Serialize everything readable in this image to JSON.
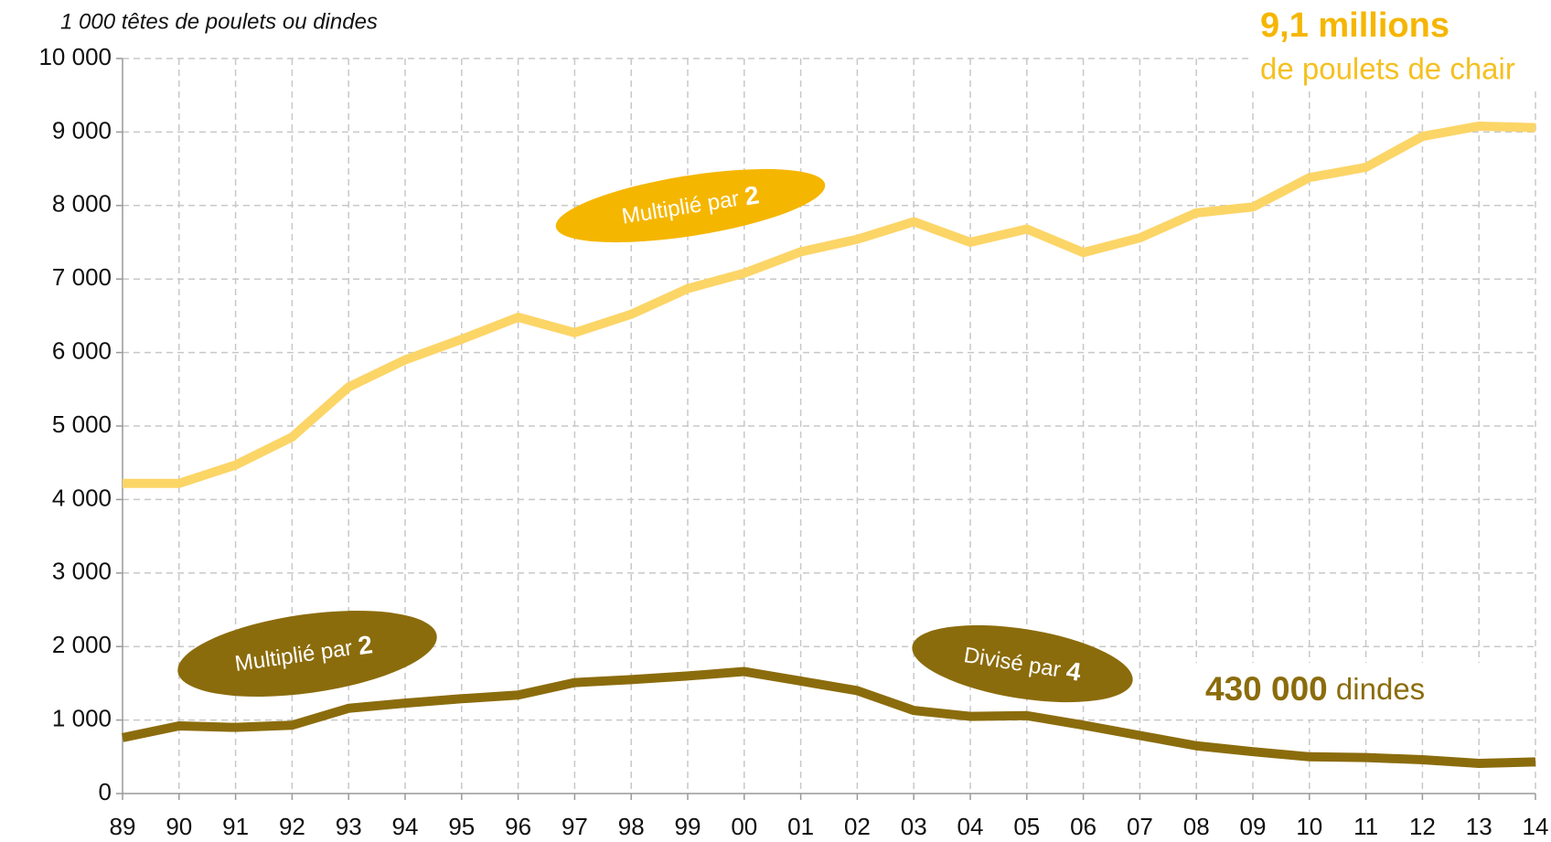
{
  "chart_data": {
    "type": "line",
    "subtitle": "1 000 têtes de poulets ou dindes",
    "categories": [
      "89",
      "90",
      "91",
      "92",
      "93",
      "94",
      "95",
      "96",
      "97",
      "98",
      "99",
      "00",
      "01",
      "02",
      "03",
      "04",
      "05",
      "06",
      "07",
      "08",
      "09",
      "10",
      "11",
      "12",
      "13",
      "14"
    ],
    "series": [
      {
        "color": "#fcd567",
        "values": [
          4220,
          4220,
          4470,
          4850,
          5530,
          5900,
          6180,
          6480,
          6270,
          6520,
          6870,
          7080,
          7370,
          7540,
          7780,
          7500,
          7680,
          7360,
          7560,
          7900,
          7980,
          8380,
          8520,
          8940,
          9080,
          9060
        ]
      },
      {
        "color": "#8b6c0c",
        "values": [
          760,
          920,
          900,
          930,
          1160,
          1230,
          1290,
          1340,
          1510,
          1550,
          1600,
          1660,
          1530,
          1400,
          1130,
          1050,
          1060,
          930,
          790,
          650,
          570,
          500,
          490,
          460,
          410,
          430
        ]
      }
    ],
    "ylim": [
      0,
      10000
    ],
    "yticks": [
      0,
      {
        "value": 1000,
        "label": "1 000"
      },
      {
        "value": 2000,
        "label": "2 000"
      },
      {
        "value": 3000,
        "label": "3 000"
      },
      {
        "value": 4000,
        "label": "4 000"
      },
      {
        "value": 5000,
        "label": "5 000"
      },
      {
        "value": 6000,
        "label": "6 000"
      },
      {
        "value": 7000,
        "label": "7 000"
      },
      {
        "value": 8000,
        "label": "8 000"
      },
      {
        "value": 9000,
        "label": "9 000"
      },
      {
        "value": 10000,
        "label": "10 000"
      }
    ],
    "grid": true,
    "annotations": {
      "chicken_total": {
        "bold": "9,1 millions",
        "text": "de poulets de chair"
      },
      "chicken_growth": {
        "text": "Multiplié par",
        "emphasis": "2"
      },
      "turkey_growth": {
        "text": "Multiplié par",
        "emphasis": "2"
      },
      "turkey_decline": {
        "text": "Divisé par",
        "emphasis": "4"
      },
      "turkey_total": {
        "bold": "430 000",
        "text": "dindes"
      }
    }
  }
}
